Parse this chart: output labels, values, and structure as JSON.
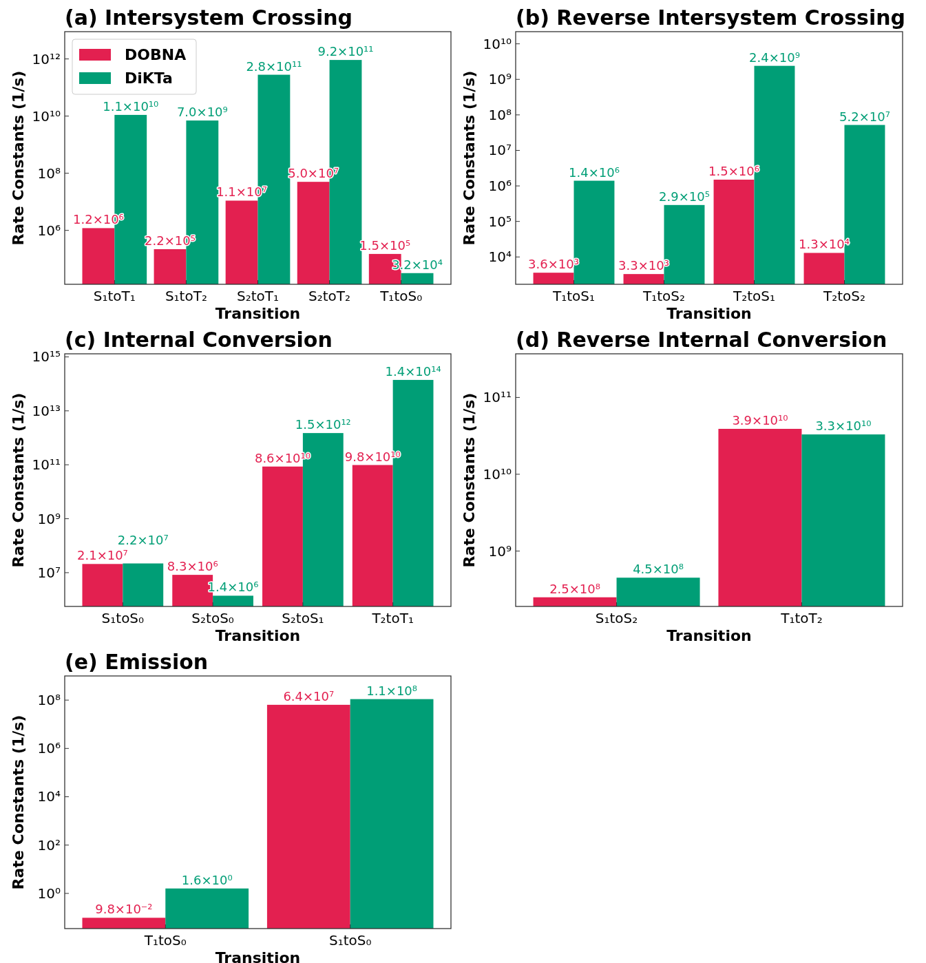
{
  "chart_data": [
    {
      "type": "bar",
      "title": "(a) Intersystem Crossing",
      "xlabel": "Transition",
      "ylabel": "Rate Constants (1/s)",
      "log": true,
      "legend": "top left",
      "categories": [
        "S₁toT₁",
        "S₁toT₂",
        "S₂toT₁",
        "S₂toT₂",
        "T₁toS₀"
      ],
      "ylim": [
        13000,
        9000000000000
      ],
      "yticks": [
        {
          "value": 1000000,
          "label": "10⁶"
        },
        {
          "value": 100000000,
          "label": "10⁸"
        },
        {
          "value": 10000000000,
          "label": "10¹⁰"
        },
        {
          "value": 1000000000000,
          "label": "10¹²"
        }
      ],
      "series": [
        {
          "name": "DOBNA",
          "color": "#e32050",
          "values": [
            1200000,
            220000,
            11000000,
            50000000,
            150000
          ],
          "value_labels": [
            "1.2×10⁶",
            "2.2×10⁵",
            "1.1×10⁷",
            "5.0×10⁷",
            "1.5×10⁵"
          ]
        },
        {
          "name": "DiKTa",
          "color": "#009e76",
          "values": [
            11000000000,
            7000000000,
            280000000000,
            920000000000,
            32000
          ],
          "value_labels": [
            "1.1×10¹⁰",
            "7.0×10⁹",
            "2.8×10¹¹",
            "9.2×10¹¹",
            "3.2×10⁴"
          ]
        }
      ]
    },
    {
      "type": "bar",
      "title": "(b) Reverse Intersystem Crossing",
      "xlabel": "Transition",
      "ylabel": "Rate Constants (1/s)",
      "log": true,
      "categories": [
        "T₁toS₁",
        "T₁toS₂",
        "T₂toS₁",
        "T₂toS₂"
      ],
      "ylim": [
        1700,
        22000000000
      ],
      "yticks": [
        {
          "value": 10000,
          "label": "10⁴"
        },
        {
          "value": 100000,
          "label": "10⁵"
        },
        {
          "value": 1000000,
          "label": "10⁶"
        },
        {
          "value": 10000000,
          "label": "10⁷"
        },
        {
          "value": 100000000,
          "label": "10⁸"
        },
        {
          "value": 1000000000,
          "label": "10⁹"
        },
        {
          "value": 10000000000,
          "label": "10¹⁰"
        }
      ],
      "series": [
        {
          "color": "#e32050",
          "values": [
            3600,
            3300,
            1500000,
            13000
          ],
          "value_labels": [
            "3.6×10³",
            "3.3×10³",
            "1.5×10⁶",
            "1.3×10⁴"
          ]
        },
        {
          "color": "#009e76",
          "values": [
            1400000,
            290000,
            2400000000,
            52000000
          ],
          "value_labels": [
            "1.4×10⁶",
            "2.9×10⁵",
            "2.4×10⁹",
            "5.2×10⁷"
          ]
        }
      ]
    },
    {
      "type": "bar",
      "title": "(c) Internal Conversion",
      "xlabel": "Transition",
      "ylabel": "Rate Constants (1/s)",
      "log": true,
      "categories": [
        "S₁toS₀",
        "S₂toS₀",
        "S₂toS₁",
        "T₂toT₁"
      ],
      "ylim": [
        560000,
        1300000000000000
      ],
      "yticks": [
        {
          "value": 10000000,
          "label": "10⁷"
        },
        {
          "value": 1000000000,
          "label": "10⁹"
        },
        {
          "value": 100000000000,
          "label": "10¹¹"
        },
        {
          "value": 10000000000000,
          "label": "10¹³"
        },
        {
          "value": 1000000000000000,
          "label": "10¹⁵"
        }
      ],
      "series": [
        {
          "color": "#e32050",
          "values": [
            21000000,
            8300000,
            86000000000,
            98000000000
          ],
          "value_labels": [
            "2.1×10⁷",
            "8.3×10⁶",
            "8.6×10¹⁰",
            "9.8×10¹⁰"
          ]
        },
        {
          "color": "#009e76",
          "values": [
            22000000,
            1400000,
            1500000000000,
            140000000000000
          ],
          "value_labels": [
            "2.2×10⁷",
            "1.4×10⁶",
            "1.5×10¹²",
            "1.4×10¹⁴"
          ]
        }
      ]
    },
    {
      "type": "bar",
      "title": "(d) Reverse Internal Conversion",
      "xlabel": "Transition",
      "ylabel": "Rate Constants (1/s)",
      "log": true,
      "categories": [
        "S₁toS₂",
        "T₁toT₂"
      ],
      "ylim": [
        190000000,
        370000000000
      ],
      "yticks": [
        {
          "value": 1000000000,
          "label": "10⁹"
        },
        {
          "value": 10000000000,
          "label": "10¹⁰"
        },
        {
          "value": 100000000000,
          "label": "10¹¹"
        }
      ],
      "series": [
        {
          "color": "#e32050",
          "values": [
            250000000,
            39000000000
          ],
          "value_labels": [
            "2.5×10⁸",
            "3.9×10¹⁰"
          ]
        },
        {
          "color": "#009e76",
          "values": [
            450000000,
            33000000000
          ],
          "value_labels": [
            "4.5×10⁸",
            "3.3×10¹⁰"
          ]
        }
      ]
    },
    {
      "type": "bar",
      "title": "(e) Emission",
      "xlabel": "Transition",
      "ylabel": "Rate Constants (1/s)",
      "log": true,
      "categories": [
        "T₁toS₀",
        "S₁toS₀"
      ],
      "ylim": [
        0.035,
        1000000000
      ],
      "yticks": [
        {
          "value": 1,
          "label": "10⁰"
        },
        {
          "value": 100,
          "label": "10²"
        },
        {
          "value": 10000,
          "label": "10⁴"
        },
        {
          "value": 1000000,
          "label": "10⁶"
        },
        {
          "value": 100000000,
          "label": "10⁸"
        }
      ],
      "series": [
        {
          "color": "#e32050",
          "values": [
            0.098,
            64000000
          ],
          "value_labels": [
            "9.8×10⁻²",
            "6.4×10⁷"
          ]
        },
        {
          "color": "#009e76",
          "values": [
            1.6,
            110000000
          ],
          "value_labels": [
            "1.6×10⁰",
            "1.1×10⁸"
          ]
        }
      ]
    }
  ]
}
